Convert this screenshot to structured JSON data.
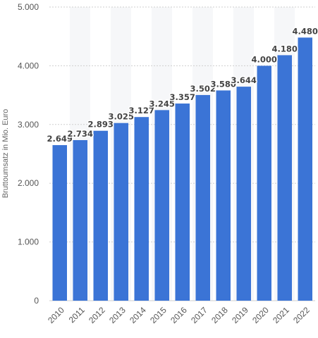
{
  "chart_data": {
    "type": "bar",
    "title": "",
    "xlabel": "",
    "ylabel": "Bruttoumsatz in Mio. Euro",
    "categories": [
      "2010",
      "2011",
      "2012",
      "2013",
      "2014",
      "2015",
      "2016",
      "2017",
      "2018",
      "2019",
      "2020",
      "2021",
      "2022"
    ],
    "values": [
      2649,
      2734,
      2893,
      3025,
      3127,
      3245,
      3357,
      3502,
      3580,
      3644,
      4000,
      4180,
      4480
    ],
    "value_labels": [
      "2.649",
      "2.734",
      "2.893",
      "3.025",
      "3.127",
      "3.245",
      "3.357",
      "3.502",
      "3.580",
      "3.644",
      "4.000",
      "4.180",
      "4.480"
    ],
    "ylim": [
      0,
      5000
    ],
    "yticks": [
      0,
      1000,
      2000,
      3000,
      4000,
      5000
    ],
    "ytick_labels": [
      "0",
      "1.000",
      "2.000",
      "3.000",
      "4.000",
      "5.000"
    ],
    "grid": true,
    "colors": {
      "bar": "#3b74d6",
      "grid": "#cfcfcf",
      "band": "#f6f7f9"
    }
  }
}
